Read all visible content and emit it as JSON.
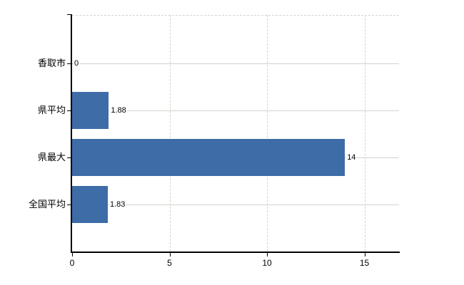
{
  "chart_data": {
    "type": "bar",
    "orientation": "horizontal",
    "title": "",
    "xlabel": "",
    "ylabel": "",
    "categories": [
      "香取市",
      "県平均",
      "県最大",
      "全国平均"
    ],
    "values": [
      0,
      1.88,
      14,
      1.83
    ],
    "value_labels": [
      "0",
      "1.88",
      "14",
      "1.83"
    ],
    "x_ticks": [
      0,
      5,
      10,
      15
    ],
    "x_tick_labels": [
      "0",
      "5",
      "10",
      "15"
    ],
    "xlim": [
      0,
      16.8
    ],
    "grid": {
      "vertical": "dashed",
      "horizontal": "solid-at-category-centers",
      "top_border": "dashed"
    },
    "legend": "none",
    "colors": {
      "bar": "#3d6ca7",
      "grid": "#d0d6cb",
      "axis": "#000000",
      "text": "#000000",
      "background": "#ffffff"
    }
  }
}
